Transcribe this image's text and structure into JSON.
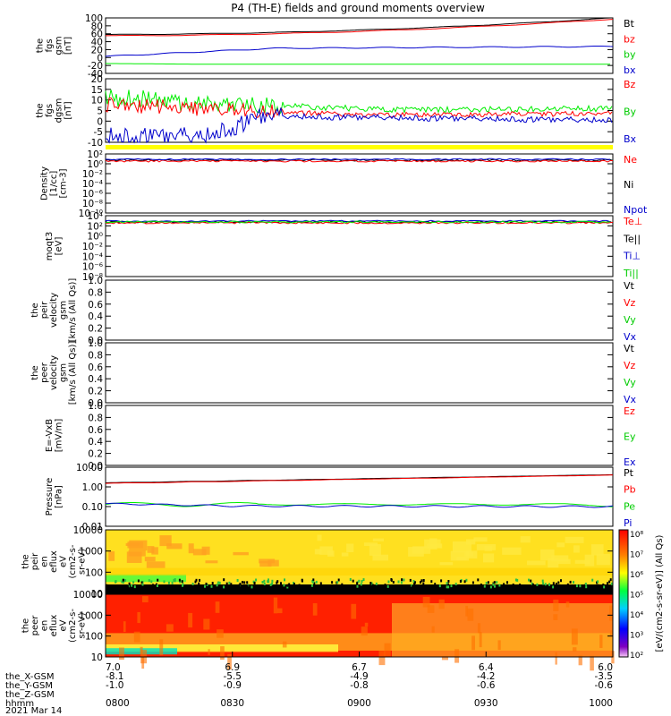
{
  "title": "P4 (TH-E) fields and ground moments overview",
  "colors": {
    "black": "#000000",
    "red": "#ff0000",
    "green": "#00ee00",
    "blue": "#0000cc",
    "yellow": "#ffff00"
  },
  "panels": [
    {
      "id": "fgs-gsm",
      "ylabel_lines": [
        "the",
        "fgs",
        "gsm",
        "[nT]"
      ],
      "ticks": [
        "100",
        "80",
        "60",
        "40",
        "20",
        "0",
        "-20",
        "-40"
      ],
      "legend": [
        {
          "name": "Bt",
          "color": "#000000"
        },
        {
          "name": "bz",
          "color": "#ff0000"
        },
        {
          "name": "by",
          "color": "#00cc00"
        },
        {
          "name": "bx",
          "color": "#0000cc"
        }
      ]
    },
    {
      "id": "fgs-dgsm",
      "ylabel_lines": [
        "the",
        "fgs",
        "dgsm",
        "[nT]"
      ],
      "ticks": [
        "20",
        "15",
        "10",
        "5",
        "0",
        "-5",
        "-10"
      ],
      "legend": [
        {
          "name": "Bz",
          "color": "#ff0000"
        },
        {
          "name": "By",
          "color": "#00cc00"
        },
        {
          "name": "Bx",
          "color": "#0000cc"
        }
      ]
    },
    {
      "id": "density",
      "ylabel_lines": [
        "Density",
        "[1/cc]",
        "[cm-3]"
      ],
      "ticks": [
        "10²",
        "10⁰",
        "10⁻²",
        "10⁻⁴",
        "10⁻⁶",
        "10⁻⁸",
        "10⁻¹⁰"
      ],
      "legend": [
        {
          "name": "Ne",
          "color": "#ff0000"
        },
        {
          "name": "Ni",
          "color": "#000000"
        },
        {
          "name": "Npot",
          "color": "#0000cc"
        }
      ]
    },
    {
      "id": "temperature",
      "ylabel_lines": [
        "moqt3",
        "[eV]"
      ],
      "ticks": [
        "10⁴",
        "10²",
        "10⁰",
        "10⁻²",
        "10⁻⁴",
        "10⁻⁶",
        "10⁻⁸"
      ],
      "legend": [
        {
          "name": "Te⊥",
          "color": "#ff0000"
        },
        {
          "name": "Te||",
          "color": "#000000"
        },
        {
          "name": "Ti⊥",
          "color": "#0000cc"
        },
        {
          "name": "Ti||",
          "color": "#00cc00"
        }
      ]
    },
    {
      "id": "peir-velocity",
      "ylabel_lines": [
        "the",
        "peir",
        "velocity",
        "gsm",
        "[km/s (All Qs)]"
      ],
      "ticks": [
        "1.0",
        "0.8",
        "0.6",
        "0.4",
        "0.2",
        "0.0"
      ],
      "legend": [
        {
          "name": "Vt",
          "color": "#000000"
        },
        {
          "name": "Vz",
          "color": "#ff0000"
        },
        {
          "name": "Vy",
          "color": "#00cc00"
        },
        {
          "name": "Vx",
          "color": "#0000cc"
        }
      ]
    },
    {
      "id": "peer-velocity",
      "ylabel_lines": [
        "the",
        "peer",
        "velocity",
        "gsm",
        "[km/s (All Qs)]"
      ],
      "ticks": [
        "1.0",
        "0.8",
        "0.6",
        "0.4",
        "0.2",
        "0.0"
      ],
      "legend": [
        {
          "name": "Vt",
          "color": "#000000"
        },
        {
          "name": "Vz",
          "color": "#ff0000"
        },
        {
          "name": "Vy",
          "color": "#00cc00"
        },
        {
          "name": "Vx",
          "color": "#0000cc"
        }
      ]
    },
    {
      "id": "efield",
      "ylabel_lines": [
        "E=-VxB",
        "[mV/m]"
      ],
      "ticks": [
        "1.0",
        "0.8",
        "0.6",
        "0.4",
        "0.2",
        "0.0"
      ],
      "legend": [
        {
          "name": "Ez",
          "color": "#ff0000"
        },
        {
          "name": "Ey",
          "color": "#00cc00"
        },
        {
          "name": "Ex",
          "color": "#0000cc"
        }
      ]
    },
    {
      "id": "pressure",
      "ylabel_lines": [
        "Pressure",
        "[nPa]"
      ],
      "ticks": [
        "10.00",
        "1.00",
        "0.10",
        "0.01"
      ],
      "legend": [
        {
          "name": "Pt",
          "color": "#000000"
        },
        {
          "name": "Pb",
          "color": "#ff0000"
        },
        {
          "name": "Pe",
          "color": "#00cc00"
        },
        {
          "name": "Pi",
          "color": "#0000cc"
        }
      ]
    },
    {
      "id": "peir-eflux",
      "ylabel_lines": [
        "the",
        "peir",
        "en",
        "eflux",
        "eV",
        "(cm2-s-",
        "sr-eV)"
      ],
      "ticks": [
        "10000",
        "1000",
        "100",
        "10"
      ]
    },
    {
      "id": "peer-eflux",
      "ylabel_lines": [
        "the",
        "peer",
        "en",
        "eflux",
        "eV",
        "(cm2-s-",
        "sr-eV)"
      ],
      "ticks": [
        "10000",
        "1000",
        "100",
        "10"
      ]
    }
  ],
  "colorbar": {
    "label": "[eV/(cm2-s-sr-eV)] (All Qs)",
    "ticks": [
      "10⁸",
      "10⁷",
      "10⁶",
      "10⁵",
      "10⁴",
      "10³",
      "10²"
    ]
  },
  "xaxis": {
    "rows": [
      {
        "label": "the_X-GSM",
        "values": [
          "-8.1",
          "-5.5",
          "-4.9",
          "-4.2",
          "-3.5"
        ]
      },
      {
        "label": "the_Y-GSM",
        "values": [
          "-1.0",
          "-0.9",
          "-0.8",
          "-0.6",
          "-0.6"
        ]
      },
      {
        "label": "the_Z-GSM",
        "values": [
          "",
          "",
          "",
          "",
          ""
        ]
      },
      {
        "label": "hhmm",
        "values": [
          "0800",
          "0830",
          "0900",
          "0930",
          "1000"
        ]
      }
    ],
    "top_values": [
      "7.0",
      "6.9",
      "6.7",
      "6.4",
      "6.0"
    ],
    "date": "2021 Mar 14"
  },
  "chart_data": {
    "type": "line",
    "title": "P4 (TH-E) fields and ground moments overview",
    "x": [
      "0800",
      "0830",
      "0900",
      "0930",
      "1000"
    ],
    "series": [
      {
        "name": "Bt",
        "panel": "fgs-gsm",
        "values": [
          58,
          62,
          72,
          85,
          97
        ]
      },
      {
        "name": "bz",
        "panel": "fgs-gsm",
        "values": [
          55,
          60,
          70,
          82,
          95
        ]
      },
      {
        "name": "by",
        "panel": "fgs-gsm",
        "values": [
          -16,
          -17,
          -17,
          -17,
          -17
        ]
      },
      {
        "name": "bx",
        "panel": "fgs-gsm",
        "values": [
          5,
          20,
          22,
          25,
          28
        ]
      },
      {
        "name": "Bz",
        "panel": "fgs-dgsm",
        "values": [
          8,
          5,
          2,
          2,
          3
        ]
      },
      {
        "name": "By",
        "panel": "fgs-dgsm",
        "values": [
          12,
          3,
          6,
          5,
          4
        ]
      },
      {
        "name": "Bx",
        "panel": "fgs-dgsm",
        "values": [
          -5,
          5,
          1,
          0,
          1
        ]
      },
      {
        "name": "Ne",
        "panel": "density",
        "values": [
          1,
          1,
          1,
          1,
          1
        ]
      },
      {
        "name": "Pt",
        "panel": "pressure",
        "values": [
          1.6,
          2.0,
          2.6,
          3.3,
          4.2
        ]
      },
      {
        "name": "Pb",
        "panel": "pressure",
        "values": [
          1.5,
          1.9,
          2.5,
          3.2,
          4.0
        ]
      },
      {
        "name": "Pe",
        "panel": "pressure",
        "values": [
          0.13,
          0.14,
          0.14,
          0.13,
          0.12
        ]
      },
      {
        "name": "Pi",
        "panel": "pressure",
        "values": [
          0.14,
          0.11,
          0.11,
          0.11,
          0.1
        ]
      }
    ]
  }
}
